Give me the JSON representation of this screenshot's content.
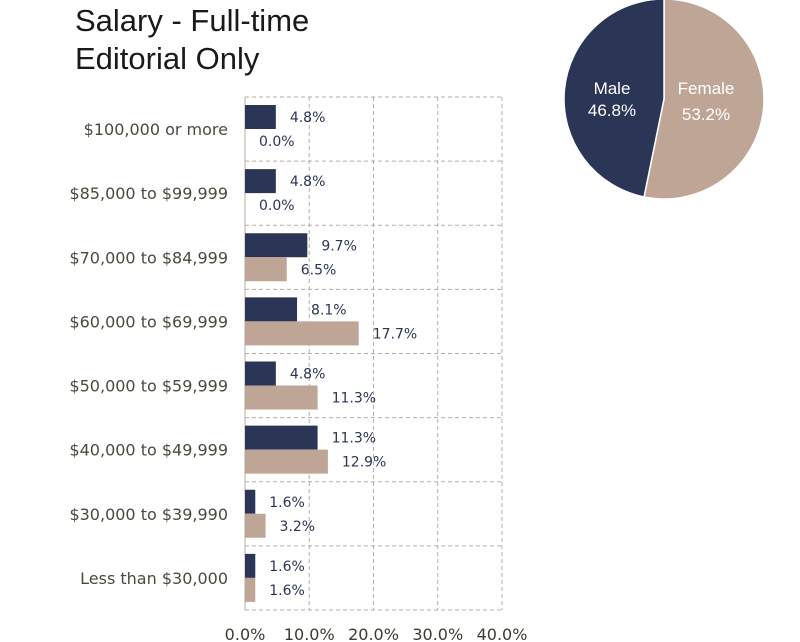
{
  "title_line1": "Salary - Full-time",
  "title_line2": "Editorial Only",
  "colors": {
    "male": "#2b3656",
    "female": "#bfa595",
    "grid": "#b3b0a2"
  },
  "chart_data": [
    {
      "type": "bar",
      "orientation": "horizontal",
      "categories": [
        "$100,000 or more",
        "$85,000 to $99,999",
        "$70,000 to $84,999",
        "$60,000 to $69,999",
        "$50,000 to $59,999",
        "$40,000 to $49,999",
        "$30,000 to $39,990",
        "Less than $30,000"
      ],
      "series": [
        {
          "name": "Male",
          "values": [
            4.8,
            4.8,
            9.7,
            8.1,
            4.8,
            11.3,
            1.6,
            1.6
          ],
          "labels": [
            "4.8%",
            "4.8%",
            "9.7%",
            "8.1%",
            "4.8%",
            "11.3%",
            "1.6%",
            "1.6%"
          ]
        },
        {
          "name": "Female",
          "values": [
            0.0,
            0.0,
            6.5,
            17.7,
            11.3,
            12.9,
            3.2,
            1.6
          ],
          "labels": [
            "0.0%",
            "0.0%",
            "6.5%",
            "17.7%",
            "11.3%",
            "12.9%",
            "3.2%",
            "1.6%"
          ]
        }
      ],
      "xlim": [
        0,
        40
      ],
      "xticks": [
        "0.0%",
        "10.0%",
        "20.0%",
        "30.0%",
        "40.0%"
      ],
      "grid": true
    },
    {
      "type": "pie",
      "slices": [
        {
          "name": "Male",
          "value": 46.8,
          "label": "46.8%"
        },
        {
          "name": "Female",
          "value": 53.2,
          "label": "53.2%"
        }
      ]
    }
  ]
}
